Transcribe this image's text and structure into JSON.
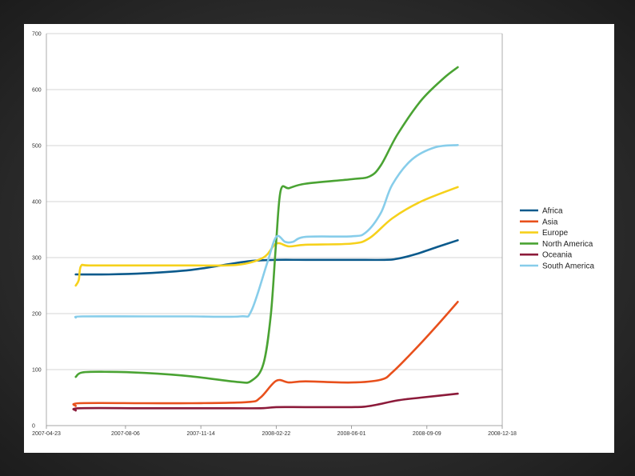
{
  "chart_data": {
    "type": "line",
    "x_ticks": [
      "2007-04-23",
      "2007-08-06",
      "2007-11-14",
      "2008-02-22",
      "2008-06-01",
      "2008-09-09",
      "2008-12-18"
    ],
    "ylim": [
      0,
      700
    ],
    "y_ticks": [
      "0",
      "100",
      "200",
      "300",
      "400",
      "500",
      "600",
      "700"
    ],
    "grid": "horizontal",
    "legend_position": "right",
    "series": [
      {
        "name": "Africa",
        "color": "#0b5a8c",
        "points": [
          [
            "2007-06-01",
            270
          ],
          [
            "2007-07-15",
            270
          ],
          [
            "2007-09-01",
            272
          ],
          [
            "2007-11-01",
            278
          ],
          [
            "2007-12-15",
            287
          ],
          [
            "2008-01-20",
            294
          ],
          [
            "2008-02-22",
            296
          ],
          [
            "2008-04-01",
            296
          ],
          [
            "2008-06-01",
            296
          ],
          [
            "2008-07-15",
            296
          ],
          [
            "2008-08-01",
            298
          ],
          [
            "2008-08-25",
            306
          ],
          [
            "2008-09-25",
            320
          ],
          [
            "2008-10-20",
            331
          ]
        ]
      },
      {
        "name": "Asia",
        "color": "#e8501c",
        "points": [
          [
            "2007-06-01",
            35
          ],
          [
            "2007-06-06",
            40
          ],
          [
            "2007-09-01",
            40
          ],
          [
            "2007-11-01",
            40
          ],
          [
            "2008-01-15",
            42
          ],
          [
            "2008-02-01",
            50
          ],
          [
            "2008-02-22",
            80
          ],
          [
            "2008-03-10",
            77
          ],
          [
            "2008-04-01",
            79
          ],
          [
            "2008-06-01",
            77
          ],
          [
            "2008-07-10",
            82
          ],
          [
            "2008-07-25",
            95
          ],
          [
            "2008-08-20",
            130
          ],
          [
            "2008-09-20",
            175
          ],
          [
            "2008-10-20",
            221
          ]
        ]
      },
      {
        "name": "Europe",
        "color": "#f6d11b",
        "points": [
          [
            "2007-06-01",
            250
          ],
          [
            "2007-06-05",
            260
          ],
          [
            "2007-06-08",
            285
          ],
          [
            "2007-06-20",
            286
          ],
          [
            "2007-09-01",
            286
          ],
          [
            "2007-11-01",
            286
          ],
          [
            "2008-01-01",
            287
          ],
          [
            "2008-02-05",
            300
          ],
          [
            "2008-02-22",
            325
          ],
          [
            "2008-03-10",
            320
          ],
          [
            "2008-04-01",
            323
          ],
          [
            "2008-06-01",
            325
          ],
          [
            "2008-06-25",
            335
          ],
          [
            "2008-07-25",
            370
          ],
          [
            "2008-09-01",
            400
          ],
          [
            "2008-10-20",
            426
          ]
        ]
      },
      {
        "name": "North America",
        "color": "#4aa333",
        "points": [
          [
            "2007-06-01",
            87
          ],
          [
            "2007-06-10",
            95
          ],
          [
            "2007-07-15",
            96
          ],
          [
            "2007-09-01",
            94
          ],
          [
            "2007-11-01",
            88
          ],
          [
            "2008-01-01",
            78
          ],
          [
            "2008-01-20",
            80
          ],
          [
            "2008-02-05",
            110
          ],
          [
            "2008-02-15",
            200
          ],
          [
            "2008-02-22",
            330
          ],
          [
            "2008-02-28",
            420
          ],
          [
            "2008-03-10",
            424
          ],
          [
            "2008-04-01",
            432
          ],
          [
            "2008-06-01",
            440
          ],
          [
            "2008-06-25",
            445
          ],
          [
            "2008-07-10",
            465
          ],
          [
            "2008-08-01",
            520
          ],
          [
            "2008-09-01",
            580
          ],
          [
            "2008-10-01",
            620
          ],
          [
            "2008-10-20",
            640
          ]
        ]
      },
      {
        "name": "Oceania",
        "color": "#8c1a3a",
        "points": [
          [
            "2007-06-01",
            27
          ],
          [
            "2007-06-06",
            31
          ],
          [
            "2007-09-01",
            31
          ],
          [
            "2007-12-01",
            31
          ],
          [
            "2008-02-01",
            31
          ],
          [
            "2008-02-22",
            33
          ],
          [
            "2008-04-01",
            33
          ],
          [
            "2008-06-01",
            33
          ],
          [
            "2008-06-25",
            35
          ],
          [
            "2008-08-01",
            45
          ],
          [
            "2008-09-01",
            50
          ],
          [
            "2008-10-20",
            57
          ]
        ]
      },
      {
        "name": "South America",
        "color": "#87cdea",
        "points": [
          [
            "2007-06-01",
            193
          ],
          [
            "2007-06-10",
            195
          ],
          [
            "2007-09-01",
            195
          ],
          [
            "2007-11-01",
            195
          ],
          [
            "2008-01-05",
            195
          ],
          [
            "2008-01-20",
            205
          ],
          [
            "2008-02-10",
            290
          ],
          [
            "2008-02-22",
            337
          ],
          [
            "2008-03-05",
            328
          ],
          [
            "2008-03-15",
            328
          ],
          [
            "2008-04-01",
            337
          ],
          [
            "2008-06-01",
            338
          ],
          [
            "2008-06-20",
            345
          ],
          [
            "2008-07-10",
            380
          ],
          [
            "2008-07-25",
            430
          ],
          [
            "2008-08-20",
            475
          ],
          [
            "2008-09-20",
            497
          ],
          [
            "2008-10-20",
            501
          ]
        ]
      }
    ]
  }
}
